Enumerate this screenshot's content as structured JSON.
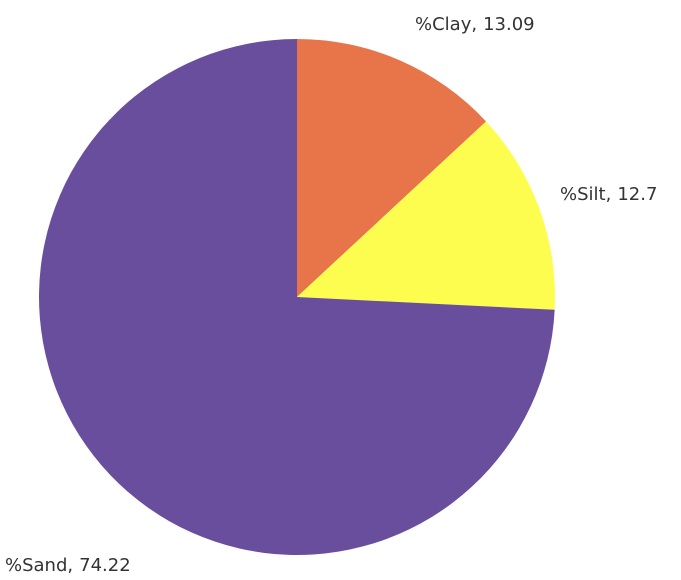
{
  "chart_data": {
    "type": "pie",
    "categories": [
      "%Clay,",
      "%Silt,",
      "%Sand,"
    ],
    "values": [
      13.09,
      12.7,
      74.22
    ],
    "colors": [
      "#e8744a",
      "#fdfd50",
      "#6a4e9e"
    ],
    "start_angle": 0,
    "direction": "clockwise"
  }
}
